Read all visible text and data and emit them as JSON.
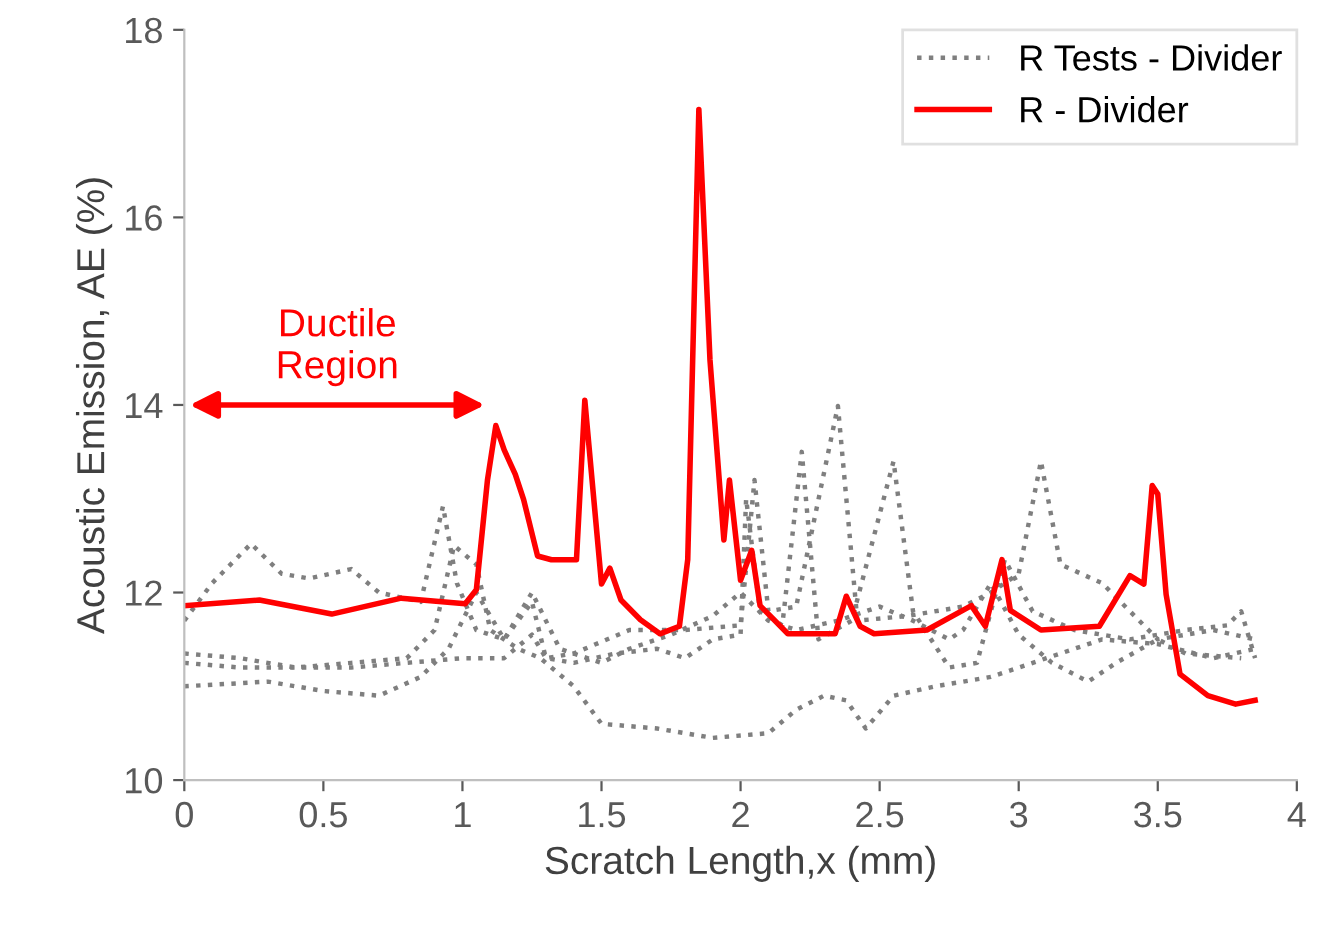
{
  "chart_data": {
    "type": "line",
    "xlabel": "Scratch Length,x (mm)",
    "ylabel": "Acoustic Emission, AE (%)",
    "xlim": [
      0,
      4
    ],
    "ylim": [
      10,
      18
    ],
    "xticks": [
      0,
      0.5,
      1,
      1.5,
      2,
      2.5,
      3,
      3.5,
      4
    ],
    "yticks": [
      10,
      12,
      14,
      16,
      18
    ],
    "grid": false,
    "legend": "top right",
    "annotations": [
      "Ductile\nRegion"
    ],
    "series": [
      {
        "name": "R Tests - Divider",
        "color": "#7f7f7f",
        "line_style": "dotted",
        "x": [
          0,
          0.1,
          0.24,
          0.35,
          0.45,
          0.6,
          0.7,
          0.85,
          0.93,
          0.98,
          1.05,
          1.15,
          1.25,
          1.3,
          1.4,
          1.6,
          1.8,
          2.0,
          2.05,
          2.1,
          2.2,
          2.35,
          2.42,
          2.6,
          2.8,
          2.9,
          3.0,
          3.08,
          3.15,
          3.3,
          3.5,
          3.7,
          3.85
        ],
        "values": [
          11.7,
          12.1,
          12.52,
          12.2,
          12.15,
          12.25,
          12.0,
          11.9,
          12.92,
          12.1,
          11.6,
          11.5,
          11.9,
          11.3,
          11.35,
          11.6,
          11.6,
          11.65,
          13.2,
          11.8,
          11.85,
          13.99,
          11.7,
          11.75,
          11.85,
          12.0,
          12.2,
          13.4,
          12.3,
          12.1,
          11.5,
          11.6,
          11.5
        ]
      },
      {
        "color": "#7f7f7f",
        "line_style": "dotted",
        "x": [
          0,
          0.2,
          0.4,
          0.6,
          0.8,
          0.9,
          0.97,
          1.05,
          1.1,
          1.2,
          1.28,
          1.4,
          1.5,
          1.7,
          1.9,
          2.1,
          2.2,
          2.3,
          2.38,
          2.45,
          2.55,
          2.7,
          2.9,
          3.1,
          3.3,
          3.5,
          3.7,
          3.85
        ],
        "values": [
          11.35,
          11.3,
          11.2,
          11.25,
          11.3,
          11.6,
          12.5,
          12.3,
          11.6,
          11.4,
          11.3,
          11.0,
          10.6,
          10.55,
          10.45,
          10.5,
          10.75,
          10.9,
          10.85,
          10.55,
          10.9,
          11.0,
          11.1,
          11.3,
          11.5,
          11.45,
          11.3,
          11.4
        ]
      },
      {
        "color": "#7f7f7f",
        "line_style": "dotted",
        "x": [
          0,
          0.3,
          0.5,
          0.7,
          0.85,
          0.95,
          1.05,
          1.15,
          1.25,
          1.35,
          1.5,
          1.6,
          1.75,
          1.9,
          2.0,
          2.1,
          2.2,
          2.35,
          2.5,
          2.62,
          2.75,
          2.8,
          2.9,
          3.0,
          3.12,
          3.25,
          3.35,
          3.5,
          3.6,
          3.8
        ],
        "values": [
          11.0,
          11.05,
          10.95,
          10.9,
          11.1,
          11.4,
          12.0,
          11.5,
          12.0,
          11.4,
          11.25,
          11.4,
          11.55,
          11.75,
          12.0,
          11.7,
          11.6,
          11.7,
          11.85,
          11.7,
          11.5,
          11.6,
          12.1,
          11.55,
          11.25,
          11.05,
          11.25,
          11.5,
          11.35,
          11.3
        ]
      },
      {
        "color": "#7f7f7f",
        "line_style": "dotted",
        "x": [
          0,
          0.2,
          0.4,
          0.6,
          0.8,
          1.0,
          1.15,
          1.25,
          1.3,
          1.4,
          1.55,
          1.7,
          1.8,
          1.9,
          2.0,
          2.02,
          2.07,
          2.15,
          2.22,
          2.28,
          2.4,
          2.55,
          2.62,
          2.75,
          2.85,
          2.95,
          3.05,
          3.2,
          3.4,
          3.6,
          3.75,
          3.8,
          3.85
        ],
        "values": [
          11.25,
          11.2,
          11.2,
          11.2,
          11.25,
          11.3,
          11.3,
          11.55,
          11.3,
          11.25,
          11.35,
          11.4,
          11.3,
          11.5,
          11.55,
          13.0,
          11.8,
          11.65,
          13.5,
          11.5,
          11.7,
          13.4,
          11.8,
          11.2,
          11.25,
          12.35,
          11.8,
          11.6,
          11.5,
          11.6,
          11.65,
          11.8,
          11.3
        ]
      },
      {
        "name": "R - Divider",
        "color": "#ff0000",
        "line_style": "solid",
        "x": [
          0,
          0.27,
          0.53,
          0.78,
          1.01,
          1.05,
          1.09,
          1.12,
          1.15,
          1.19,
          1.22,
          1.27,
          1.32,
          1.41,
          1.44,
          1.5,
          1.53,
          1.57,
          1.64,
          1.71,
          1.78,
          1.81,
          1.85,
          1.89,
          1.94,
          1.96,
          2.0,
          2.04,
          2.07,
          2.17,
          2.34,
          2.38,
          2.43,
          2.48,
          2.67,
          2.83,
          2.88,
          2.94,
          2.97,
          3.08,
          3.29,
          3.4,
          3.45,
          3.48,
          3.5,
          3.53,
          3.58,
          3.68,
          3.78,
          3.85
        ],
        "values": [
          11.86,
          11.92,
          11.77,
          11.94,
          11.88,
          12.03,
          13.2,
          13.78,
          13.52,
          13.26,
          12.99,
          12.39,
          12.35,
          12.35,
          14.05,
          12.09,
          12.26,
          11.92,
          11.71,
          11.56,
          11.64,
          12.35,
          17.15,
          14.48,
          12.56,
          13.2,
          12.13,
          12.45,
          11.86,
          11.56,
          11.56,
          11.96,
          11.64,
          11.56,
          11.6,
          11.86,
          11.64,
          12.35,
          11.81,
          11.6,
          11.64,
          12.18,
          12.09,
          13.14,
          13.05,
          11.98,
          11.13,
          10.9,
          10.81,
          10.85
        ]
      }
    ]
  }
}
